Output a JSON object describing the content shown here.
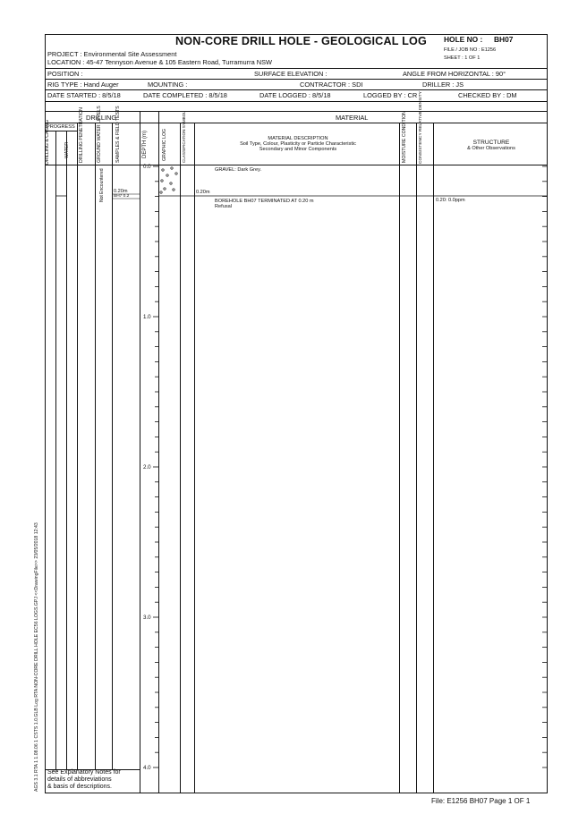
{
  "header": {
    "title": "NON-CORE DRILL HOLE - GEOLOGICAL LOG",
    "hole_no_label": "HOLE NO :",
    "hole_no": "BH07",
    "file_job_no": "FILE / JOB NO : E1256",
    "sheet": "SHEET : 1 OF 1",
    "project": "PROJECT  :  Environmental Site Assessment",
    "location": "LOCATION  :  45-47 Tennyson Avenue & 105 Eastern Road, Turramurra NSW"
  },
  "info": {
    "position": "POSITION  :",
    "surface_elevation": "SURFACE ELEVATION  :",
    "angle": "ANGLE FROM HORIZONTAL  :  90°",
    "rig_type": "RIG TYPE  :  Hand Auger",
    "mounting": "MOUNTING  :",
    "contractor": "CONTRACTOR  :  SDI",
    "driller": "DRILLER  :  JS",
    "date_started": "DATE STARTED  :  8/5/18",
    "date_completed": "DATE COMPLETED  :  8/5/18",
    "date_logged": "DATE LOGGED  :  8/5/18",
    "logged_by": "LOGGED BY  :  CR",
    "checked_by": "CHECKED BY  :  DM"
  },
  "sections": {
    "drilling": "DRILLING",
    "material": "MATERIAL"
  },
  "columns": {
    "progress": "PROGRESS",
    "drilling_casing": "DRILLING & CASING",
    "water": "WATER",
    "drilling_penetration": "DRILLING PENETRATION",
    "ground_water_levels": "GROUND WATER LEVELS",
    "samples_field_tests": "SAMPLES & FIELD TESTS",
    "depth": "DEPTH (m)",
    "graphic_log": "GRAPHIC LOG",
    "classification_symbol": "CLASSIFICATION SYMBOL",
    "material_description_title": "MATERIAL DESCRIPTION",
    "material_description_sub1": "Soil Type, Colour, Plasticity or Particle Characteristic",
    "material_description_sub2": "Secondary and Minor Components",
    "moisture_condition": "MOISTURE CONDITION",
    "consistency_density": "CONSISTENCY RELATIVE DENSITY",
    "structure_title": "STRUCTURE",
    "structure_sub": "& Other Observations"
  },
  "log": {
    "groundwater_note": "Not Encountered",
    "sample_depth": "0.20m",
    "sample_id": "BH7 0.2",
    "class_depth": "0.20m",
    "layer1": "GRAVEL: Dark Grey.",
    "termination": "BOREHOLE BH07 TERMINATED AT 0.20 m",
    "termination_reason": "Refusal",
    "structure_obs": "0.20: 0.0ppm"
  },
  "depth_labels": [
    "0.0",
    "1.0",
    "2.0",
    "3.0",
    "4.0"
  ],
  "footer": {
    "notes_line1": "See Explanatory Notes for",
    "notes_line2": "details of abbreviations",
    "notes_line3": "& basis of descriptions.",
    "file_ref": "File: E1256 BH07  Page  1  OF  1",
    "side_text": "AGS 3.1 RTA 1 1.08.06 1 CSTS 1.0.GLB  Log  RTA NON-CORE DRILL HOLE  EC56 LOGS.GPJ  <<DrawingFile>>  23/05/2018 12:43"
  }
}
